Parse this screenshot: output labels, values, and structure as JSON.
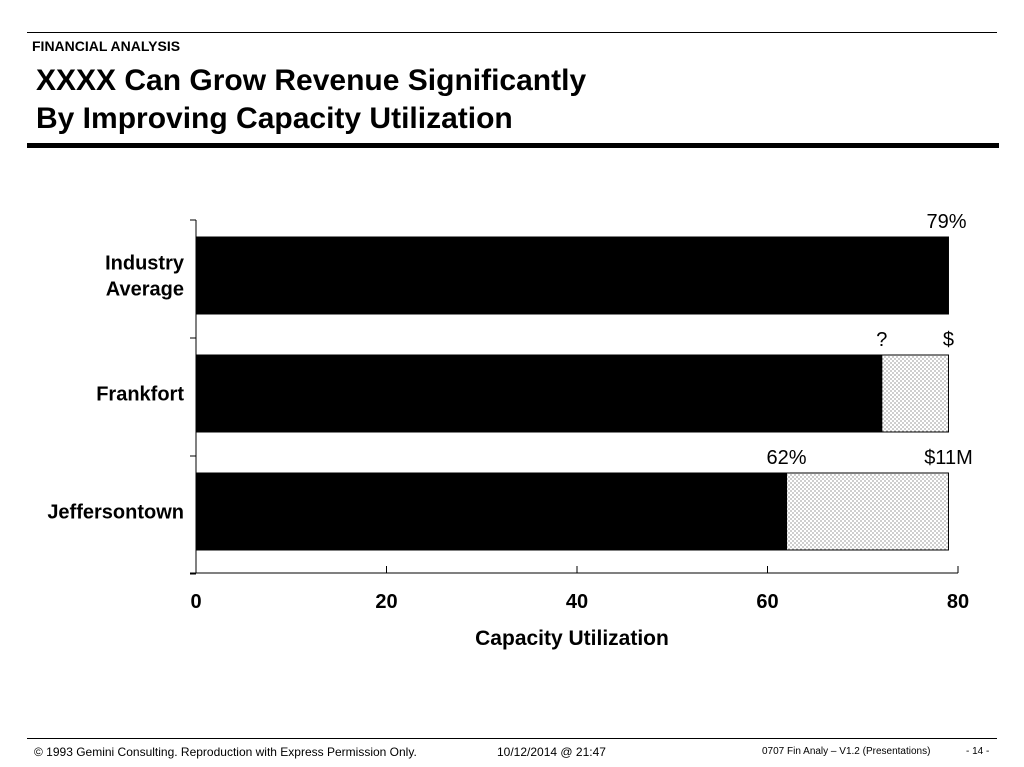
{
  "header": {
    "section": "FINANCIAL ANALYSIS",
    "title_line1": "XXXX Can Grow Revenue Significantly",
    "title_line2": "By Improving Capacity Utilization"
  },
  "chart_data": {
    "type": "bar",
    "orientation": "horizontal",
    "stacked": true,
    "categories": [
      "Industry Average",
      "Frankfort",
      "Jeffersontown"
    ],
    "category_label_lines": [
      [
        "Industry",
        "Average"
      ],
      [
        "Frankfort"
      ],
      [
        "Jeffersontown"
      ]
    ],
    "series": [
      {
        "values": [
          79,
          72,
          62
        ],
        "color": "#000000",
        "pattern": "solid"
      },
      {
        "values": [
          0,
          7,
          17
        ],
        "color": "#ffffff",
        "pattern": "dotted"
      }
    ],
    "bar_labels": [
      {
        "category": "Industry Average",
        "value_label": "79%",
        "gap_label": ""
      },
      {
        "category": "Frankfort",
        "value_label": "?",
        "gap_label": "$"
      },
      {
        "category": "Jeffersontown",
        "value_label": "62%",
        "gap_label": "$11M"
      }
    ],
    "xlim": [
      0,
      80
    ],
    "xticks": [
      "0",
      "20",
      "40",
      "60",
      "80"
    ],
    "xlabel": "Capacity Utilization",
    "ylabel": "",
    "grid": false,
    "legend": "none"
  },
  "footer": {
    "copyright": "© 1993 Gemini Consulting. Reproduction with Express Permission Only.",
    "datetime": "10/12/2014 @ 21:47",
    "doc_ref": "0707 Fin Analy – V1.2 (Presentations)",
    "page": "- 14 -"
  }
}
